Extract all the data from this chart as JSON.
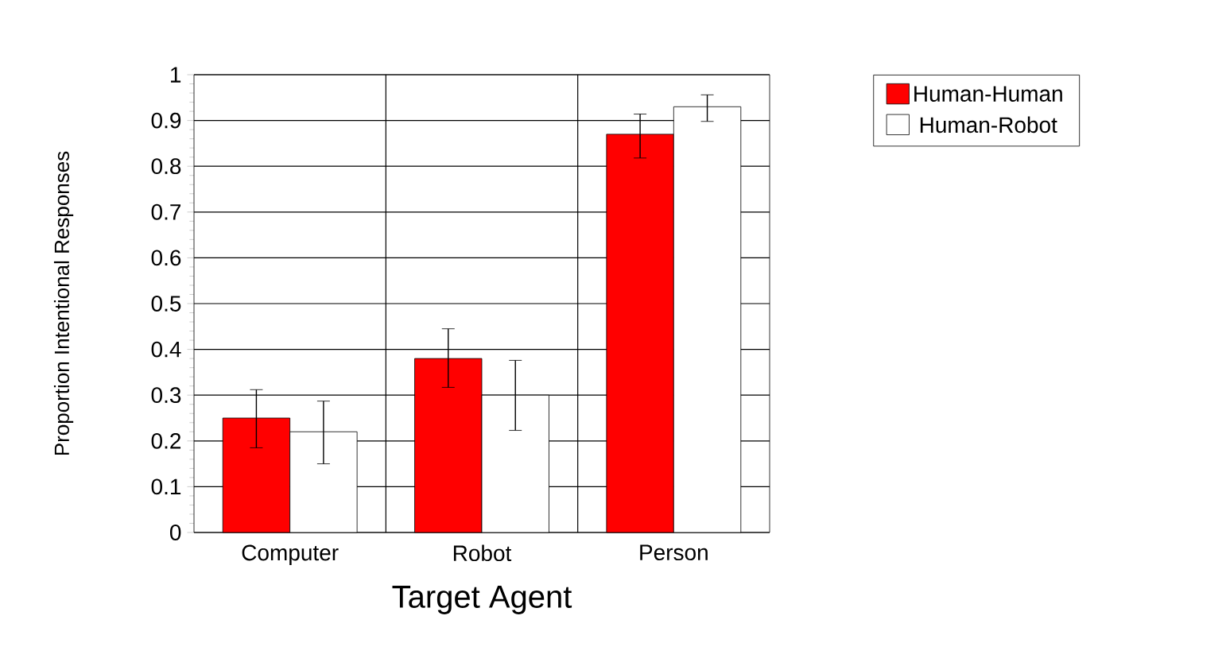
{
  "chart_data": {
    "type": "bar",
    "xlabel": "Target Agent",
    "ylabel": "Proportion Intentional Responses",
    "categories": [
      "Computer",
      "Robot",
      "Person"
    ],
    "series": [
      {
        "name": "Human-Human",
        "color": "#ff0000",
        "values": [
          0.25,
          0.38,
          0.87
        ],
        "errors": [
          [
            0.185,
            0.312
          ],
          [
            0.317,
            0.445
          ],
          [
            0.818,
            0.914
          ]
        ]
      },
      {
        "name": "Human-Robot",
        "color": "#ffffff",
        "values": [
          0.22,
          0.3,
          0.93
        ],
        "errors": [
          [
            0.15,
            0.287
          ],
          [
            0.223,
            0.376
          ],
          [
            0.898,
            0.956
          ]
        ]
      }
    ],
    "ylim": [
      0,
      1
    ],
    "yticks": [
      0,
      0.1,
      0.2,
      0.3,
      0.4,
      0.5,
      0.6,
      0.7,
      0.8,
      0.9,
      1
    ],
    "grid": true,
    "legend": "top right"
  }
}
